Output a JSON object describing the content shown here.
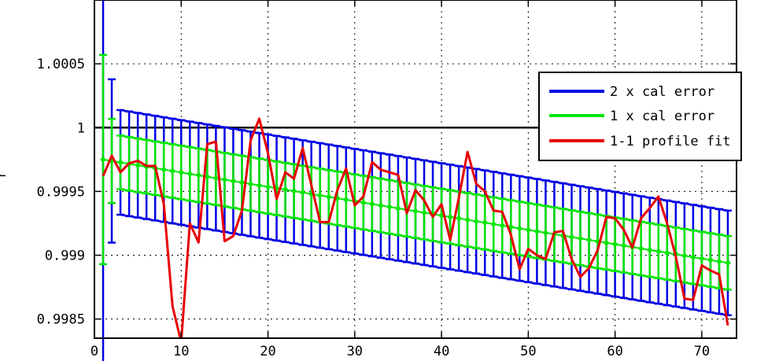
{
  "chart_data": {
    "type": "line",
    "title": "",
    "xlabel": "",
    "ylabel": "r",
    "xlim": [
      0,
      74
    ],
    "ylim": [
      0.99835,
      1.001
    ],
    "xticks": [
      "0",
      "10",
      "20",
      "30",
      "40",
      "50",
      "60",
      "70"
    ],
    "yticks": [
      "0.9985",
      "0.999",
      "0.9995",
      "1",
      "1.0005"
    ],
    "grid": true,
    "reference_line": 1.0,
    "legend_position": "top-right",
    "error_bars": {
      "x_start": 1,
      "x_end": 73,
      "center_start": 0.99975,
      "center_end": 0.99894,
      "green_halfwidth_first": 0.00082,
      "green_halfwidth_second": 0.00033,
      "green_halfwidth_rest": 0.00021,
      "blue_halfwidth_first": 0.00164,
      "blue_halfwidth_second": 0.00064,
      "blue_halfwidth_rest": 0.00041
    },
    "series": [
      {
        "name": "2 x cal error",
        "color": "#0000e6",
        "kind": "errorbar-2x"
      },
      {
        "name": "1 x cal error",
        "color": "#00e600",
        "kind": "errorbar-1x"
      },
      {
        "name": "1-1 profile fit",
        "color": "#e60000",
        "kind": "line",
        "x": [
          1,
          2,
          3,
          4,
          5,
          6,
          7,
          8,
          9,
          10,
          11,
          12,
          13,
          14,
          15,
          16,
          17,
          18,
          19,
          20,
          21,
          22,
          23,
          24,
          25,
          26,
          27,
          28,
          29,
          30,
          31,
          32,
          33,
          34,
          35,
          36,
          37,
          38,
          39,
          40,
          41,
          42,
          43,
          44,
          45,
          46,
          47,
          48,
          49,
          50,
          51,
          52,
          53,
          54,
          55,
          56,
          57,
          58,
          59,
          60,
          61,
          62,
          63,
          64,
          65,
          66,
          67,
          68,
          69,
          70,
          71,
          72,
          73
        ],
        "y": [
          0.99962,
          0.99978,
          0.99965,
          0.99972,
          0.99974,
          0.9997,
          0.9997,
          0.9994,
          0.9986,
          0.99832,
          0.99925,
          0.9991,
          0.99987,
          0.99989,
          0.99911,
          0.99915,
          0.99935,
          0.9999,
          1.00007,
          0.9998,
          0.99944,
          0.99965,
          0.9996,
          0.99984,
          0.99955,
          0.99926,
          0.99926,
          0.99951,
          0.99968,
          0.99939,
          0.99946,
          0.99973,
          0.99967,
          0.99965,
          0.99963,
          0.99933,
          0.99951,
          0.99943,
          0.9993,
          0.9994,
          0.99912,
          0.99945,
          0.99981,
          0.99956,
          0.9995,
          0.99935,
          0.99934,
          0.99916,
          0.99889,
          0.99905,
          0.999,
          0.99897,
          0.99918,
          0.99919,
          0.99897,
          0.99883,
          0.9989,
          0.99904,
          0.9993,
          0.99929,
          0.9992,
          0.99906,
          0.99929,
          0.99937,
          0.99946,
          0.99925,
          0.99899,
          0.99866,
          0.99865,
          0.99892,
          0.99888,
          0.99885,
          0.99845
        ]
      }
    ]
  }
}
